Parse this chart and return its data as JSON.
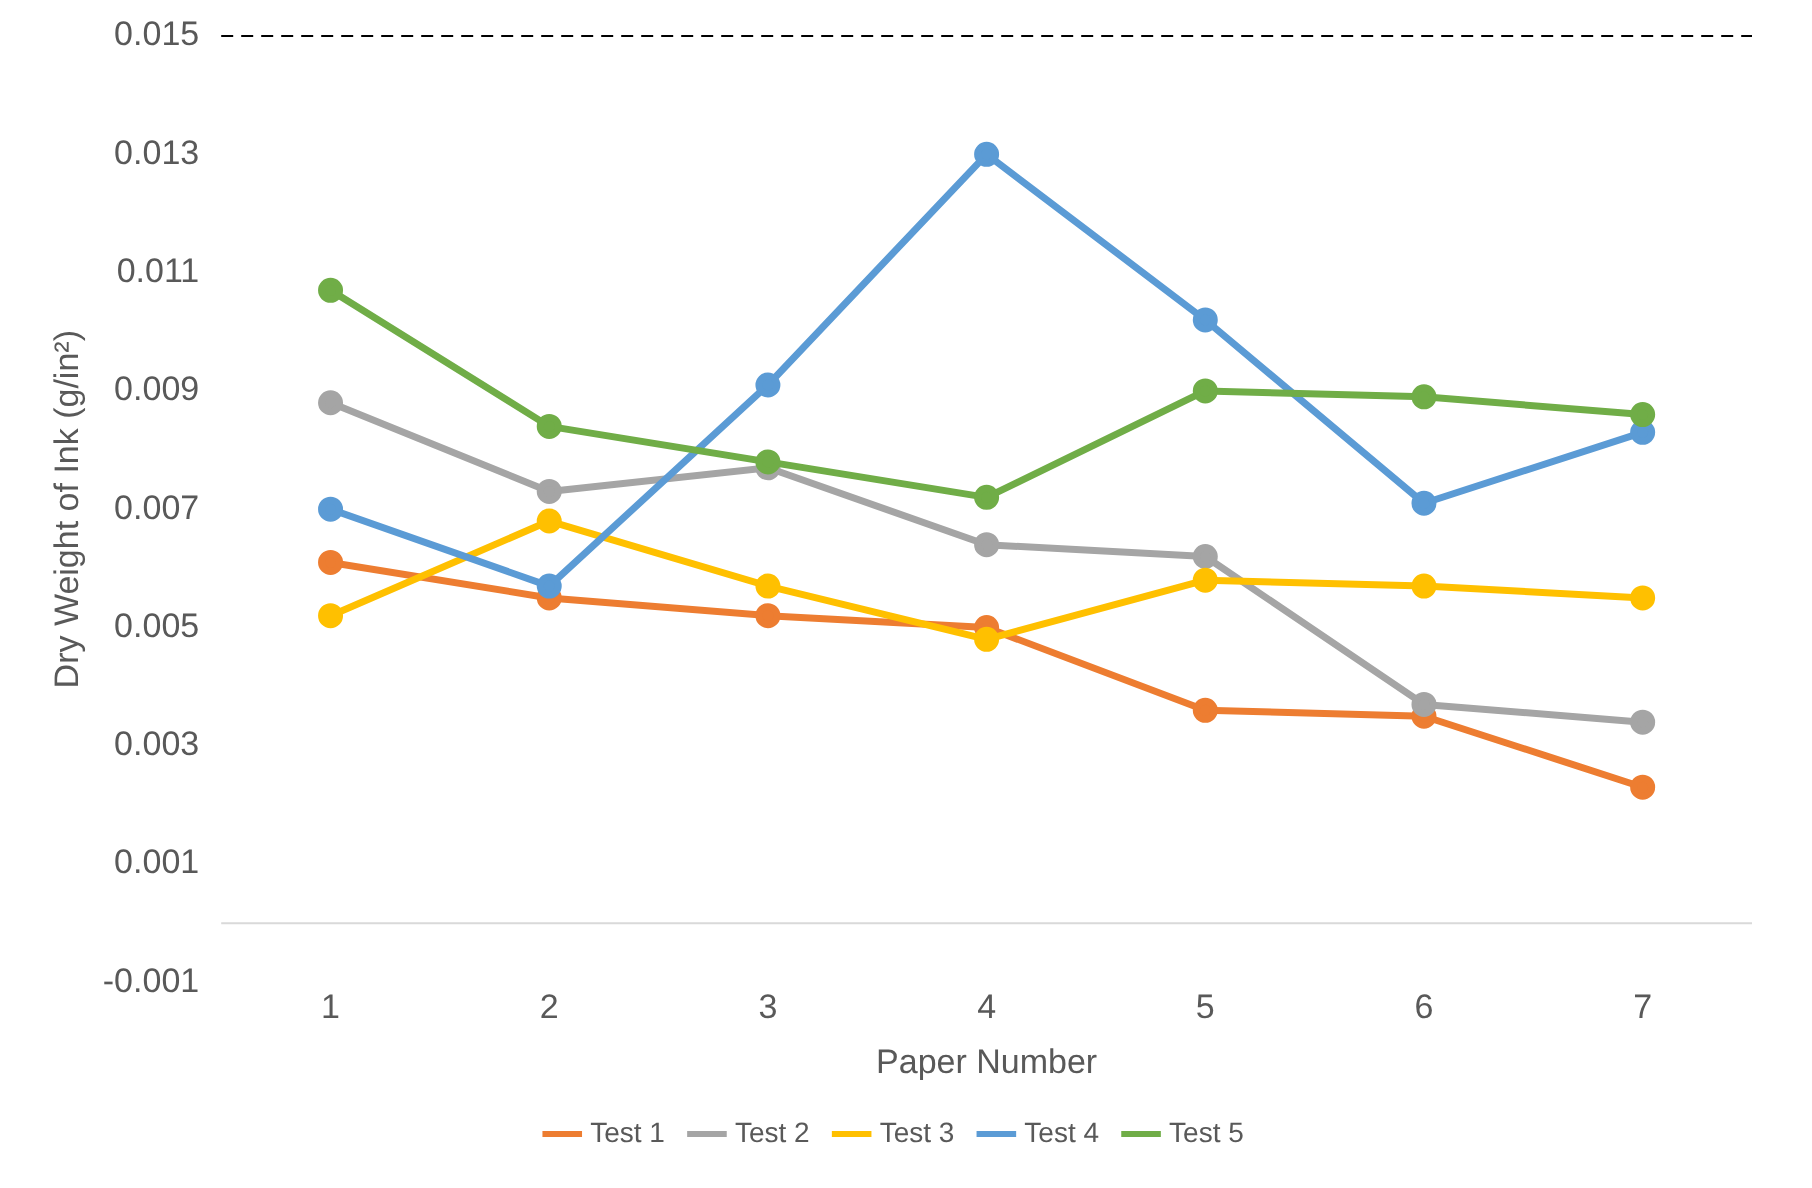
{
  "chart_data": {
    "type": "line",
    "xlabel": "Paper Number",
    "ylabel": "Dry Weight of Ink (g/in²)",
    "categories": [
      "1",
      "2",
      "3",
      "4",
      "5",
      "6",
      "7"
    ],
    "series": [
      {
        "name": "Test 1",
        "color": "#ed7d31",
        "values": [
          0.0061,
          0.0055,
          0.0052,
          0.005,
          0.0036,
          0.0035,
          0.0023
        ]
      },
      {
        "name": "Test 2",
        "color": "#a5a5a5",
        "values": [
          0.0088,
          0.0073,
          0.0077,
          0.0064,
          0.0062,
          0.0037,
          0.0034
        ]
      },
      {
        "name": "Test 3",
        "color": "#ffc000",
        "values": [
          0.0052,
          0.0068,
          0.0057,
          0.0048,
          0.0058,
          0.0057,
          0.0055
        ]
      },
      {
        "name": "Test 4",
        "color": "#5b9bd5",
        "values": [
          0.007,
          0.0057,
          0.0091,
          0.013,
          0.0102,
          0.0071,
          0.0083
        ]
      },
      {
        "name": "Test 5",
        "color": "#70ad47",
        "values": [
          0.0107,
          0.0084,
          0.0078,
          0.0072,
          0.009,
          0.0089,
          0.0086
        ]
      }
    ],
    "ylim": [
      -0.001,
      0.015
    ],
    "yticks": [
      -0.001,
      0.001,
      0.003,
      0.005,
      0.007,
      0.009,
      0.011,
      0.013,
      0.015
    ],
    "ref_lines": [
      {
        "axis": "y",
        "value": 0.015,
        "color": "#000000",
        "line_style": "dashed"
      }
    ],
    "grid": false,
    "legend": "bottom",
    "marker": "circle",
    "line_style": "solid"
  }
}
